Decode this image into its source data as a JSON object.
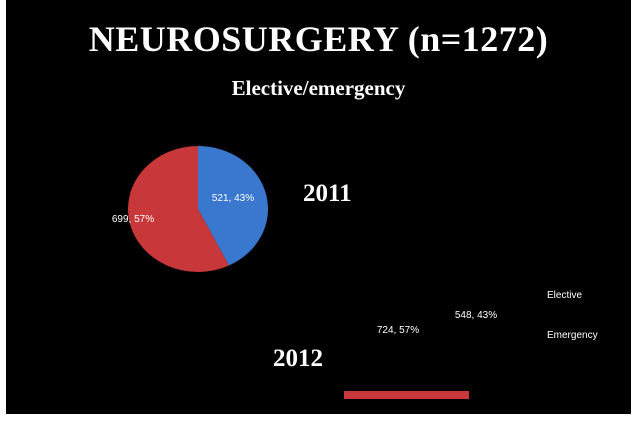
{
  "page": {
    "title": "NEUROSURGERY (n=1272)",
    "subtitle": "Elective/emergency"
  },
  "colors": {
    "elective": "#3a78d0",
    "emergency": "#c8383a",
    "background": "#000000",
    "text": "#ffffff"
  },
  "chart_data": [
    {
      "type": "pie",
      "title": "2011",
      "slices": [
        {
          "label": "Elective",
          "value": 521,
          "percent": 43,
          "data_label": "521, 43%",
          "color": "#3a78d0"
        },
        {
          "label": "Emergency",
          "value": 699,
          "percent": 57,
          "data_label": "699, 57%",
          "color": "#c8383a"
        }
      ]
    },
    {
      "type": "pie",
      "title": "2012",
      "slices": [
        {
          "label": "Elective",
          "value": 548,
          "percent": 43,
          "data_label": "548, 43%",
          "color": "#3a78d0"
        },
        {
          "label": "Emergency",
          "value": 724,
          "percent": 57,
          "data_label": "724, 57%",
          "color": "#c8383a"
        }
      ],
      "legend": {
        "entries": [
          "Elective",
          "Emergency"
        ],
        "placement": "right"
      }
    }
  ]
}
